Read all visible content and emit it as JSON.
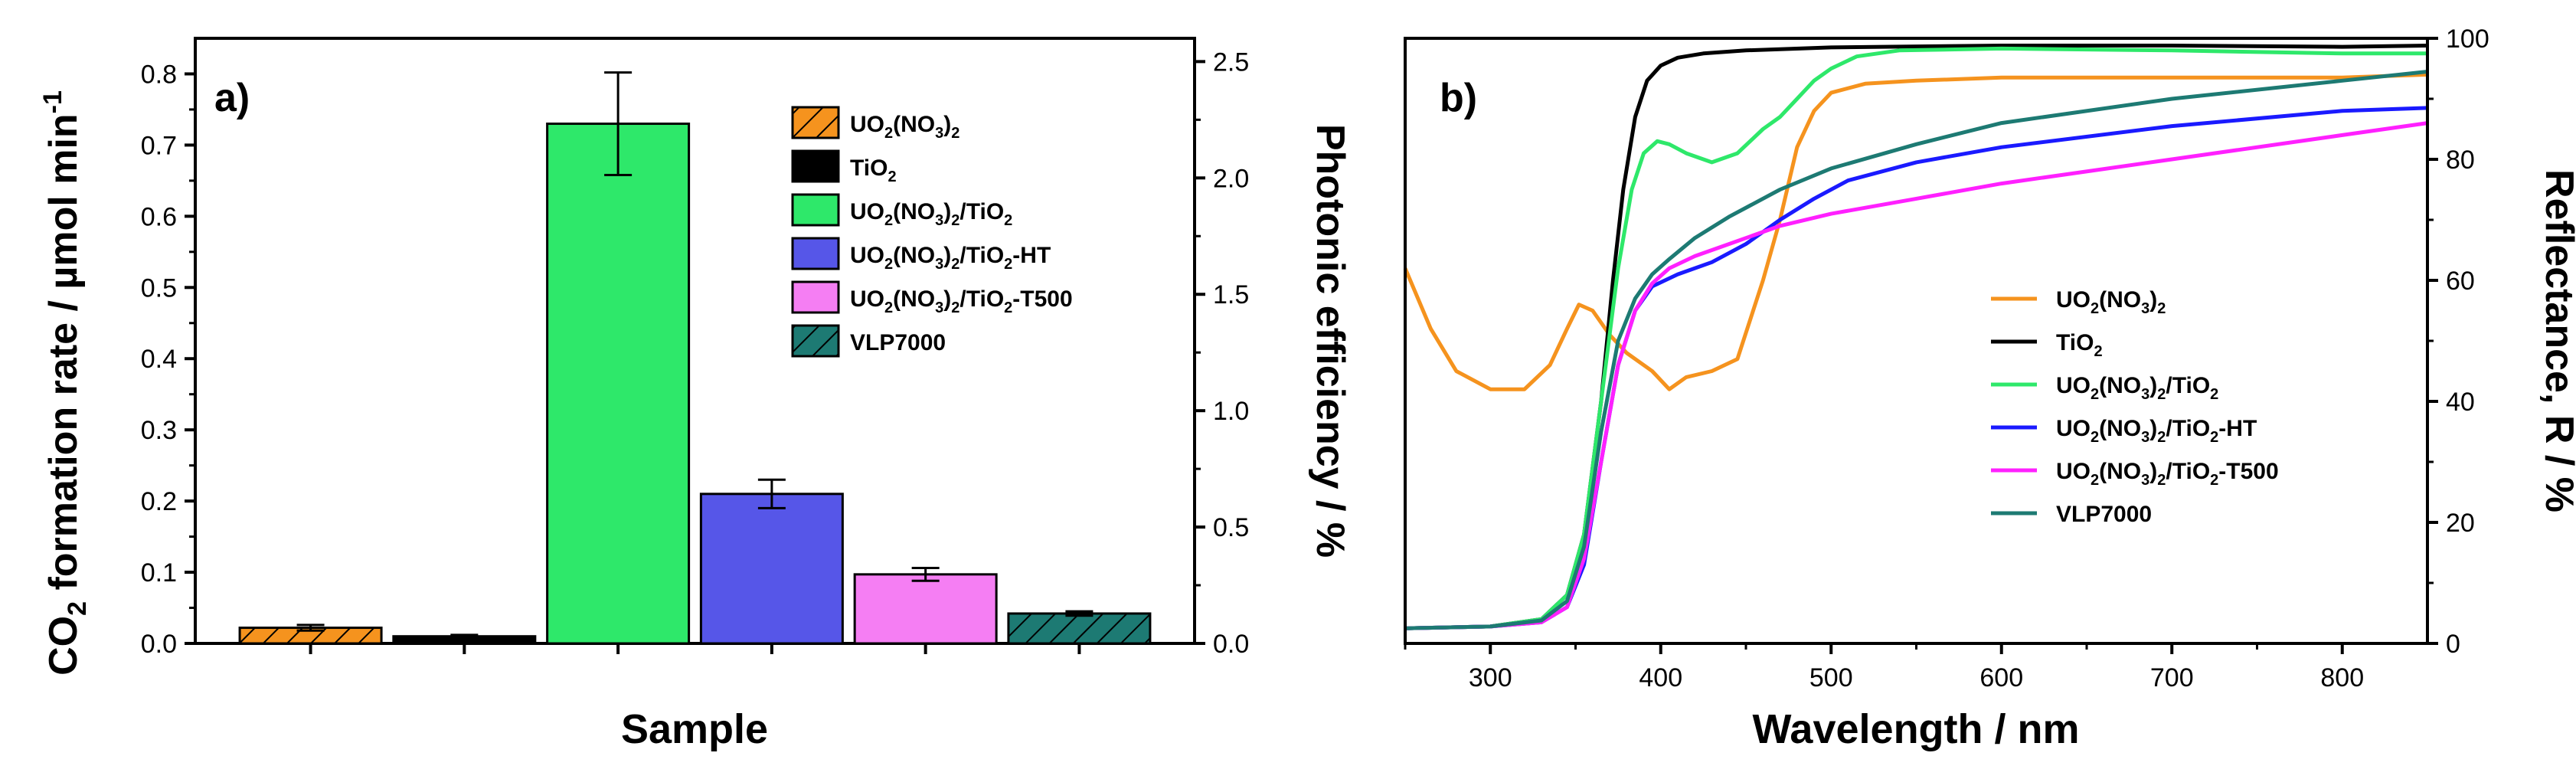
{
  "chart_data": [
    {
      "type": "bar",
      "panel_label": "a)",
      "xlabel": "Sample",
      "ylabel": "CO2 formation rate / µmol min-1",
      "y2label": "Photonic efficiency / %",
      "ylim": [
        0,
        0.85
      ],
      "y2lim": [
        0,
        2.6
      ],
      "yticks": [
        "0.0",
        "0.1",
        "0.2",
        "0.3",
        "0.4",
        "0.5",
        "0.6",
        "0.7",
        "0.8"
      ],
      "y2ticks": [
        "0.0",
        "0.5",
        "1.0",
        "1.5",
        "2.0",
        "2.5"
      ],
      "categories": [
        "UO2(NO3)2",
        "TiO2",
        "UO2(NO3)2/TiO2",
        "UO2(NO3)2/TiO2-HT",
        "UO2(NO3)2/TiO2-T500",
        "VLP7000"
      ],
      "values": [
        0.022,
        0.01,
        0.73,
        0.21,
        0.097,
        0.042
      ],
      "errors": [
        0.004,
        0.002,
        0.072,
        0.02,
        0.009,
        0.003
      ],
      "colors": [
        "#f5931e",
        "#000000",
        "#2ee86a",
        "#5656e8",
        "#f57ef3",
        "#1d7a73"
      ],
      "patterns": [
        "hatch",
        "solid",
        "solid",
        "solid",
        "solid",
        "hatch"
      ],
      "legend_position": "top-right"
    },
    {
      "type": "line",
      "panel_label": "b)",
      "xlabel": "Wavelength / nm",
      "ylabel": "Reflectance, R / %",
      "xlim": [
        250,
        850
      ],
      "ylim": [
        0,
        100
      ],
      "xticks": [
        "300",
        "400",
        "500",
        "600",
        "700",
        "800"
      ],
      "yticks": [
        "0",
        "20",
        "40",
        "60",
        "80",
        "100"
      ],
      "legend_position": "center-right",
      "series": [
        {
          "name": "UO2(NO3)2",
          "color": "#f5931e",
          "x": [
            250,
            265,
            280,
            300,
            320,
            335,
            345,
            352,
            360,
            370,
            380,
            395,
            405,
            415,
            430,
            445,
            460,
            470,
            480,
            490,
            500,
            520,
            550,
            600,
            700,
            800,
            850
          ],
          "y": [
            62,
            52,
            45,
            42,
            42,
            46,
            52,
            56,
            55,
            51,
            48,
            45,
            42,
            44,
            45,
            47,
            60,
            70,
            82,
            88,
            91,
            92.5,
            93,
            93.5,
            93.5,
            93.5,
            94
          ]
        },
        {
          "name": "TiO2",
          "color": "#000000",
          "x": [
            250,
            300,
            330,
            345,
            355,
            365,
            372,
            378,
            385,
            392,
            400,
            410,
            425,
            450,
            500,
            600,
            700,
            800,
            850
          ],
          "y": [
            2.5,
            2.8,
            4,
            8,
            18,
            40,
            60,
            75,
            87,
            93,
            95.5,
            96.8,
            97.5,
            98,
            98.5,
            98.8,
            98.8,
            98.6,
            98.8
          ]
        },
        {
          "name": "UO2(NO3)2/TiO2",
          "color": "#2ee86a",
          "x": [
            250,
            300,
            330,
            345,
            355,
            365,
            375,
            383,
            390,
            398,
            405,
            415,
            430,
            445,
            460,
            470,
            480,
            490,
            500,
            515,
            540,
            600,
            700,
            800,
            850
          ],
          "y": [
            2.5,
            2.8,
            4,
            8,
            18,
            40,
            62,
            75,
            81,
            83,
            82.5,
            81,
            79.5,
            81,
            85,
            87,
            90,
            93,
            95,
            97,
            98,
            98.3,
            98,
            97.5,
            97.5
          ]
        },
        {
          "name": "UO2(NO3)2/TiO2-HT",
          "color": "#1a1aff",
          "x": [
            250,
            300,
            330,
            345,
            355,
            365,
            375,
            385,
            395,
            410,
            430,
            450,
            470,
            490,
            510,
            550,
            600,
            700,
            800,
            850
          ],
          "y": [
            2.5,
            2.8,
            3.5,
            6,
            13,
            30,
            46,
            55,
            59,
            61,
            63,
            66,
            70,
            73.5,
            76.5,
            79.5,
            82,
            85.5,
            88,
            88.5
          ]
        },
        {
          "name": "UO2(NO3)2/TiO2-T500",
          "color": "#ff20ff",
          "x": [
            250,
            300,
            330,
            345,
            355,
            365,
            375,
            385,
            395,
            405,
            420,
            440,
            470,
            500,
            550,
            600,
            700,
            800,
            850
          ],
          "y": [
            2.5,
            2.8,
            3.5,
            6,
            14,
            30,
            46,
            55,
            59.5,
            62,
            64,
            66,
            69,
            71,
            73.5,
            76,
            80,
            84,
            86
          ]
        },
        {
          "name": "VLP7000",
          "color": "#1d7a73",
          "x": [
            250,
            300,
            330,
            345,
            355,
            365,
            375,
            385,
            395,
            405,
            420,
            440,
            470,
            500,
            550,
            600,
            700,
            800,
            850
          ],
          "y": [
            2.5,
            2.8,
            3.8,
            7,
            16,
            35,
            50,
            57,
            61,
            63.5,
            67,
            70.5,
            75,
            78.5,
            82.5,
            86,
            90,
            93,
            94.5
          ]
        }
      ]
    }
  ]
}
